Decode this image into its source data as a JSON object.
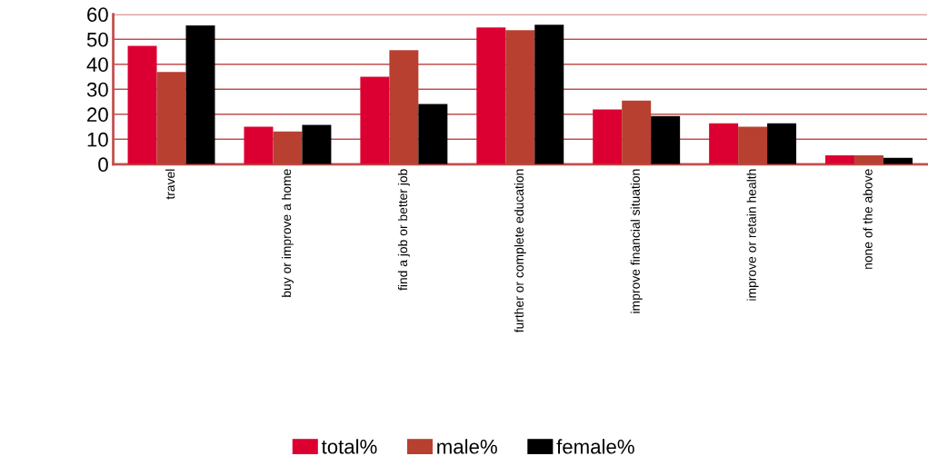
{
  "chart_data": {
    "type": "bar",
    "categories": [
      "travel",
      "buy or improve a home",
      "find a job or better job",
      "further or complete education",
      "improve financial situation",
      "improve or retain health",
      "none of the above"
    ],
    "series": [
      {
        "name": "total%",
        "color": "#dc0032",
        "values": [
          47.4,
          15.0,
          35.0,
          54.7,
          21.9,
          16.4,
          3.6
        ]
      },
      {
        "name": "male%",
        "color": "#b84031",
        "values": [
          36.9,
          13.1,
          45.6,
          53.6,
          25.5,
          15.0,
          3.6
        ]
      },
      {
        "name": "female%",
        "color": "#000000",
        "values": [
          55.5,
          15.7,
          24.1,
          55.8,
          19.3,
          16.4,
          2.6
        ]
      }
    ],
    "ylim": [
      0,
      60
    ],
    "yticks": [
      0,
      10,
      20,
      30,
      40,
      50,
      60
    ],
    "grid": "y",
    "legend": "bottom"
  }
}
